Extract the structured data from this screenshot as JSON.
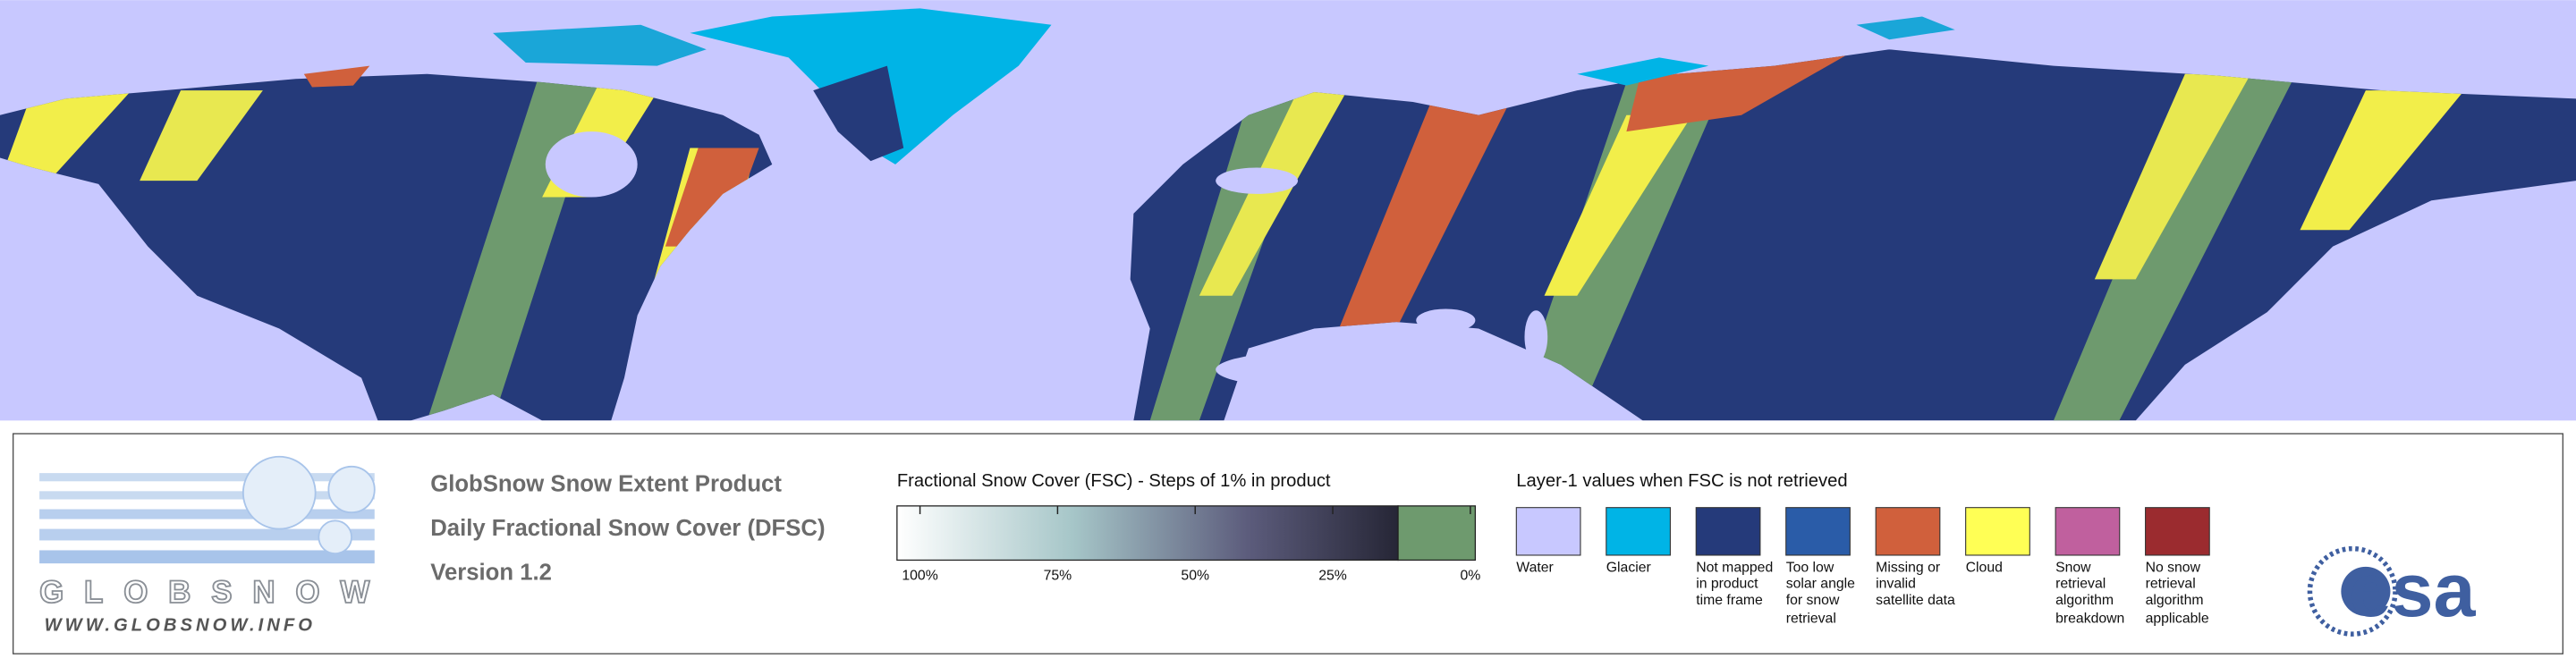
{
  "logo": {
    "name": "GLOBSNOW",
    "url": "WWW.GLOBSNOW.INFO"
  },
  "product": {
    "lines": [
      "GlobSnow Snow Extent Product",
      "Daily Fractional Snow Cover (DFSC)",
      "Version 1.2"
    ]
  },
  "fsc_scale": {
    "title": "Fractional Snow Cover (FSC) - Steps of 1% in product",
    "ticks": [
      {
        "value": 100,
        "label": "100%"
      },
      {
        "value": 75,
        "label": "75%"
      },
      {
        "value": 50,
        "label": "50%"
      },
      {
        "value": 25,
        "label": "25%"
      },
      {
        "value": 0,
        "label": "0%"
      }
    ]
  },
  "layer1": {
    "title": "Layer-1 values when FSC is not retrieved",
    "items": [
      {
        "label": "Water",
        "color": "#c8c8ff"
      },
      {
        "label": "Glacier",
        "color": "#00b4e6"
      },
      {
        "label": "Not mapped in product time frame",
        "color": "#253a7a"
      },
      {
        "label": "Too low solar angle for snow retrieval",
        "color": "#2a5ca8"
      },
      {
        "label": "Missing or invalid satellite data",
        "color": "#d0603c"
      },
      {
        "label": "Cloud",
        "color": "#ffff55"
      },
      {
        "label": "Snow retrieval algorithm breakdown",
        "color": "#c0609e"
      },
      {
        "label": "No snow retrieval algorithm applicable",
        "color": "#9b2b2f"
      }
    ]
  },
  "esa_logo": "esa"
}
